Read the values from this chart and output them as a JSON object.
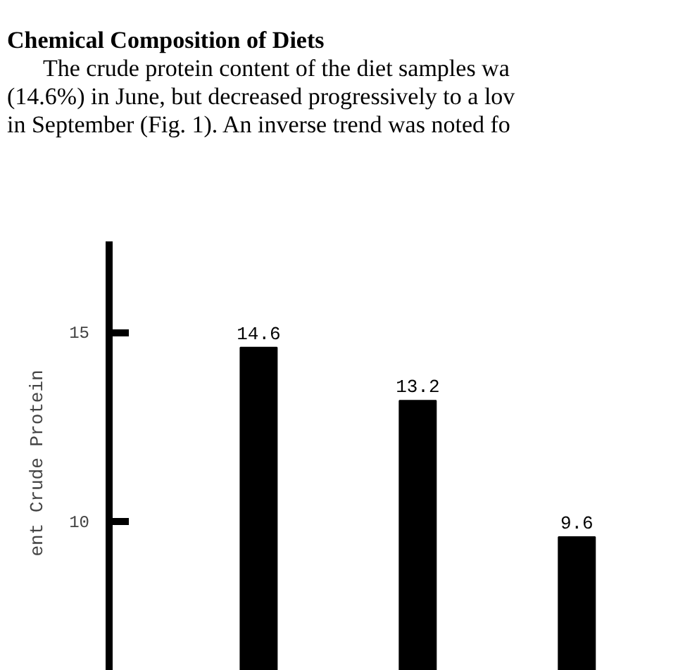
{
  "chart_data": {
    "type": "bar",
    "annotations": [
      "Chemical Composition of Diets",
      "The crude protein content of the diet samples wa",
      "(14.6%) in June, but decreased progressively to a lov",
      "in September (Fig. 1). An inverse trend was noted fo"
    ],
    "ylabel": "ent Crude Protein",
    "categories": [
      null,
      null,
      null
    ],
    "values": [
      14.6,
      13.2,
      9.6
    ],
    "color": "#000000",
    "ylim": [
      5.7,
      17.4
    ],
    "yticks": [
      10,
      15
    ],
    "data_labels": true,
    "grid": false
  }
}
